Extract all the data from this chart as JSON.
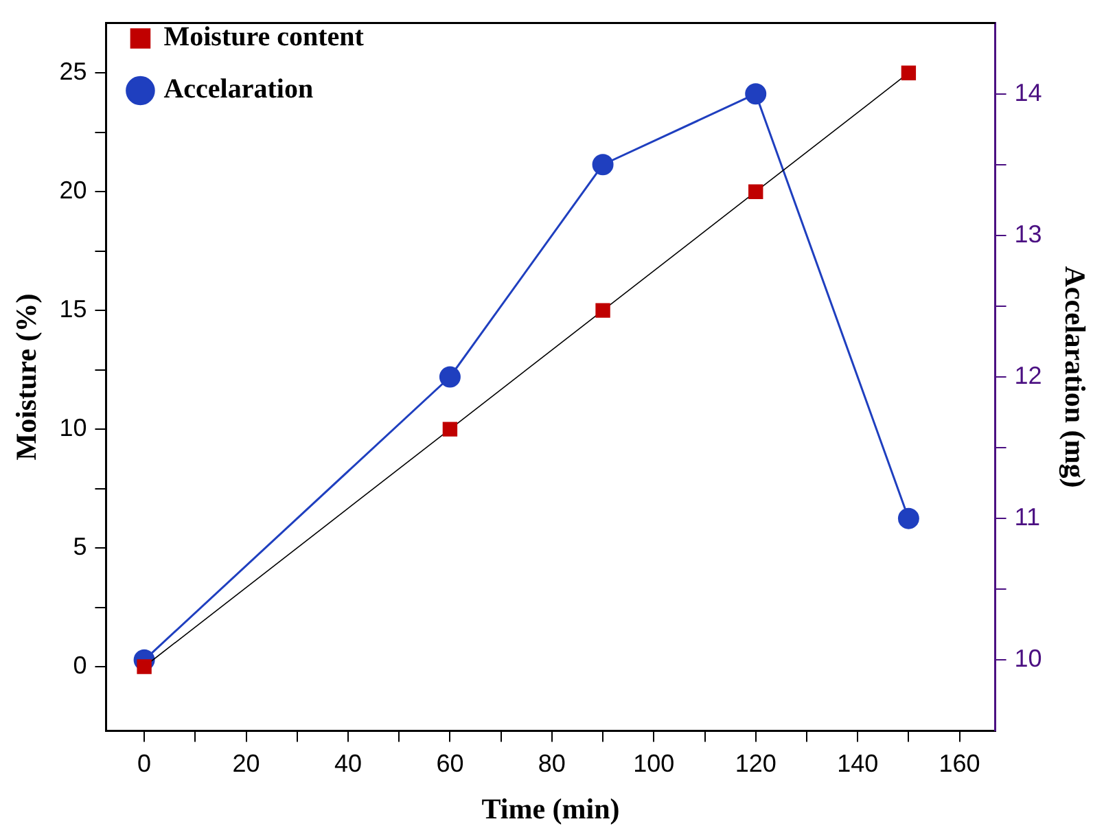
{
  "chart_data": {
    "type": "line",
    "xlabel": "Time (min)",
    "ylabel": "Moisture (%)",
    "y2label": "Accelaration (mg)",
    "x": [
      0,
      60,
      90,
      120,
      150
    ],
    "series": [
      {
        "name": "Moisture content",
        "color": "#c00000",
        "values": [
          0,
          10,
          15,
          20,
          25
        ],
        "marker": "square"
      },
      {
        "name": "Accelaration",
        "color": "#1f3fbf",
        "values": [
          10,
          12,
          13.5,
          14,
          11
        ],
        "axis": "y2",
        "marker": "circle"
      }
    ],
    "xlim": [
      -7.5,
      167
    ],
    "xticks": [
      0,
      {
        "value": 10,
        "label": null
      },
      20,
      {
        "value": 30,
        "label": null
      },
      40,
      {
        "value": 50,
        "label": null
      },
      60,
      {
        "value": 70,
        "label": null
      },
      80,
      {
        "value": 90,
        "label": null
      },
      100,
      {
        "value": 110,
        "label": null
      },
      120,
      {
        "value": 130,
        "label": null
      },
      140,
      {
        "value": 150,
        "label": null
      },
      160
    ],
    "ylim": [
      -2.7,
      27.1
    ],
    "yticks": [
      0,
      {
        "value": 2.5,
        "label": null
      },
      5,
      {
        "value": 7.5,
        "label": null
      },
      10,
      {
        "value": 12.5,
        "label": null
      },
      15,
      {
        "value": 17.5,
        "label": null
      },
      20,
      {
        "value": 22.5,
        "label": null
      },
      25
    ],
    "y2lim": [
      9.5,
      14.5
    ],
    "y2ticks": [
      10,
      {
        "value": 10.5,
        "label": null
      },
      11,
      {
        "value": 11.5,
        "label": null
      },
      12,
      {
        "value": 12.5,
        "label": null
      },
      13,
      {
        "value": 13.5,
        "label": null
      },
      14
    ],
    "grid": false,
    "legend": "top left",
    "line_style": "solid"
  }
}
